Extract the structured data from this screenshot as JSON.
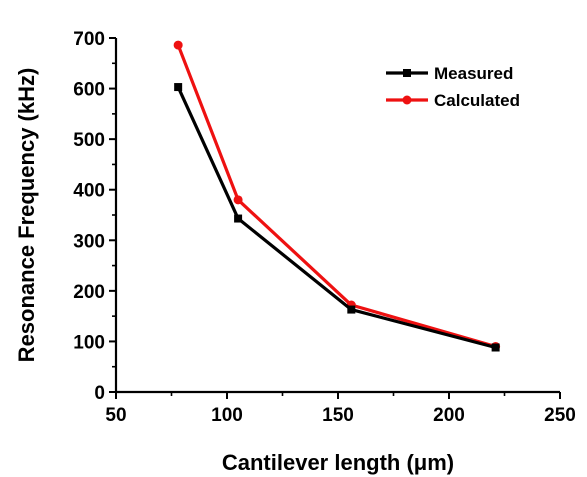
{
  "chart_data": {
    "type": "line",
    "xlabel": "Cantilever length (μm)",
    "ylabel": "Resonance Frequency (kHz)",
    "xlim": [
      50,
      250
    ],
    "ylim": [
      0,
      700
    ],
    "xticks": [
      50,
      100,
      150,
      200,
      250
    ],
    "yticks": [
      0,
      100,
      200,
      300,
      400,
      500,
      600,
      700
    ],
    "grid": false,
    "legend_position": "top-right",
    "series": [
      {
        "name": "Measured",
        "color": "#000000",
        "marker": "square",
        "x": [
          78,
          105,
          156,
          221
        ],
        "y": [
          603,
          343,
          163,
          88
        ]
      },
      {
        "name": "Calculated",
        "color": "#ee1111",
        "marker": "circle",
        "x": [
          78,
          105,
          156,
          221
        ],
        "y": [
          686,
          380,
          172,
          90
        ]
      }
    ]
  }
}
